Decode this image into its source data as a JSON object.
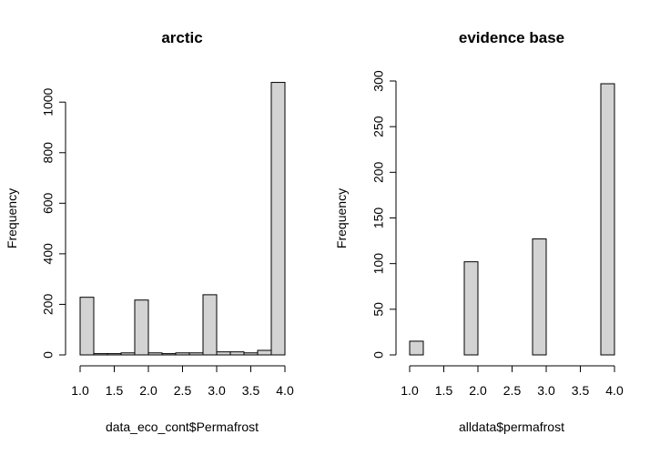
{
  "colors": {
    "bar_fill": "#d3d3d3",
    "bar_stroke": "#000000",
    "background": "#ffffff"
  },
  "chart_data": [
    {
      "type": "bar",
      "title": "arctic",
      "xlabel": "data_eco_cont$Permafrost",
      "ylabel": "Frequency",
      "xlim": [
        1.0,
        4.0
      ],
      "ylim": [
        0,
        1080
      ],
      "x_ticks": [
        1.0,
        1.5,
        2.0,
        2.5,
        3.0,
        3.5,
        4.0
      ],
      "x_tick_labels": [
        "1.0",
        "1.5",
        "2.0",
        "2.5",
        "3.0",
        "3.5",
        "4.0"
      ],
      "y_ticks": [
        0,
        200,
        400,
        600,
        800,
        1000
      ],
      "y_tick_labels": [
        "0",
        "200",
        "400",
        "600",
        "800",
        "1000"
      ],
      "bin_edges": [
        1.0,
        1.2,
        1.4,
        1.6,
        1.8,
        2.0,
        2.2,
        2.4,
        2.6,
        2.8,
        3.0,
        3.2,
        3.4,
        3.6,
        3.8,
        4.0
      ],
      "values": [
        228,
        5,
        5,
        8,
        217,
        8,
        5,
        8,
        8,
        238,
        12,
        12,
        8,
        18,
        1078
      ],
      "grid": false,
      "legend": "none"
    },
    {
      "type": "bar",
      "title": "evidence base",
      "xlabel": "alldata$permafrost",
      "ylabel": "Frequency",
      "xlim": [
        1.0,
        4.0
      ],
      "ylim": [
        0,
        300
      ],
      "x_ticks": [
        1.0,
        1.5,
        2.0,
        2.5,
        3.0,
        3.5,
        4.0
      ],
      "x_tick_labels": [
        "1.0",
        "1.5",
        "2.0",
        "2.5",
        "3.0",
        "3.5",
        "4.0"
      ],
      "y_ticks": [
        0,
        50,
        100,
        150,
        200,
        250,
        300
      ],
      "y_tick_labels": [
        "0",
        "50",
        "100",
        "150",
        "200",
        "250",
        "300"
      ],
      "bin_edges": [
        1.0,
        1.2,
        1.4,
        1.6,
        1.8,
        2.0,
        2.2,
        2.4,
        2.6,
        2.8,
        3.0,
        3.2,
        3.4,
        3.6,
        3.8,
        4.0
      ],
      "values": [
        15,
        0,
        0,
        0,
        102,
        0,
        0,
        0,
        0,
        127,
        0,
        0,
        0,
        0,
        297
      ],
      "grid": false,
      "legend": "none"
    }
  ]
}
